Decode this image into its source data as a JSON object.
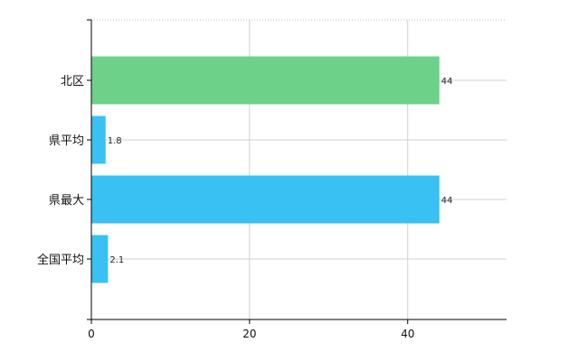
{
  "chart_data": {
    "type": "bar",
    "orientation": "horizontal",
    "categories": [
      "北区",
      "県平均",
      "県最大",
      "全国平均"
    ],
    "values": [
      44,
      1.8,
      44,
      2.1
    ],
    "value_labels": [
      "44",
      "1.8",
      "44",
      "2.1"
    ],
    "bar_colors": [
      "#6ed18a",
      "#38c1f2",
      "#38c1f2",
      "#38c1f2"
    ],
    "xlim": [
      0,
      52.5
    ],
    "xticks": [
      0,
      20,
      40
    ],
    "xtick_labels": [
      "0",
      "20",
      "40"
    ],
    "grid": true,
    "title": "",
    "xlabel": "",
    "ylabel": ""
  }
}
